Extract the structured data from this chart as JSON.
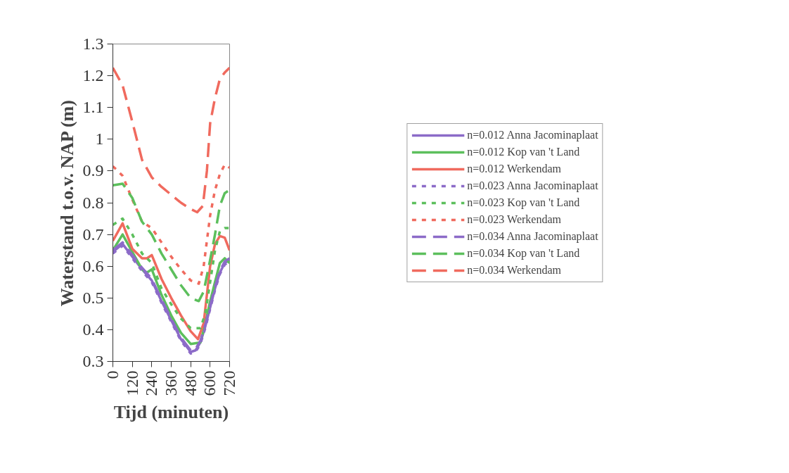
{
  "chart_data": {
    "type": "line",
    "xlabel": "Tijd (minuten)",
    "ylabel": "Waterstand t.o.v. NAP (m)",
    "xlim": [
      0,
      720
    ],
    "xticks": [
      0,
      120,
      240,
      360,
      480,
      600,
      720
    ],
    "ylim": [
      0.3,
      1.3
    ],
    "yticks": [
      0.3,
      0.4,
      0.5,
      0.6,
      0.7,
      0.8,
      0.9,
      1,
      1.1,
      1.2,
      1.3
    ],
    "grid": false,
    "legend": "right",
    "marker": "none",
    "series": [
      {
        "name": "n=0.012 Anna Jacominaplaat",
        "color": "#8c6bc8",
        "line_style": "solid",
        "x": [
          0,
          60,
          120,
          180,
          240,
          300,
          360,
          420,
          480,
          510,
          540,
          570,
          600,
          630,
          660,
          690,
          720
        ],
        "values": [
          0.645,
          0.67,
          0.63,
          0.59,
          0.555,
          0.49,
          0.43,
          0.37,
          0.33,
          0.335,
          0.36,
          0.41,
          0.47,
          0.53,
          0.58,
          0.61,
          0.62
        ]
      },
      {
        "name": "n=0.012 Kop van 't Land",
        "color": "#5cbf5c",
        "line_style": "solid",
        "x": [
          0,
          60,
          120,
          180,
          210,
          240,
          300,
          360,
          420,
          480,
          540,
          570,
          600,
          630,
          660,
          690,
          720
        ],
        "values": [
          0.65,
          0.7,
          0.645,
          0.59,
          0.58,
          0.59,
          0.51,
          0.445,
          0.39,
          0.355,
          0.36,
          0.42,
          0.49,
          0.55,
          0.61,
          0.625,
          0.61
        ]
      },
      {
        "name": "n=0.012 Werkendam",
        "color": "#f06a5e",
        "line_style": "solid",
        "x": [
          0,
          60,
          120,
          180,
          210,
          240,
          300,
          360,
          420,
          480,
          525,
          560,
          600,
          630,
          660,
          690,
          720
        ],
        "values": [
          0.68,
          0.735,
          0.655,
          0.625,
          0.625,
          0.635,
          0.56,
          0.5,
          0.445,
          0.395,
          0.37,
          0.42,
          0.6,
          0.67,
          0.695,
          0.69,
          0.65
        ]
      },
      {
        "name": "n=0.023 Anna Jacominaplaat",
        "color": "#8c6bc8",
        "line_style": "dotted",
        "x": [
          0,
          60,
          120,
          180,
          240,
          300,
          360,
          420,
          480,
          510,
          540,
          570,
          600,
          630,
          660,
          690,
          720
        ],
        "values": [
          0.64,
          0.665,
          0.625,
          0.585,
          0.55,
          0.485,
          0.425,
          0.365,
          0.325,
          0.33,
          0.355,
          0.405,
          0.465,
          0.525,
          0.575,
          0.605,
          0.615
        ]
      },
      {
        "name": "n=0.023 Kop van 't Land",
        "color": "#5cbf5c",
        "line_style": "dotted",
        "x": [
          0,
          60,
          120,
          180,
          240,
          300,
          360,
          420,
          480,
          540,
          570,
          600,
          630,
          660,
          690,
          720
        ],
        "values": [
          0.73,
          0.75,
          0.7,
          0.64,
          0.61,
          0.53,
          0.48,
          0.435,
          0.405,
          0.405,
          0.45,
          0.55,
          0.65,
          0.71,
          0.72,
          0.72
        ]
      },
      {
        "name": "n=0.023 Werkendam",
        "color": "#f06a5e",
        "line_style": "dotted",
        "x": [
          0,
          60,
          120,
          180,
          240,
          300,
          360,
          420,
          480,
          530,
          560,
          600,
          630,
          660,
          690,
          720
        ],
        "values": [
          0.915,
          0.885,
          0.81,
          0.74,
          0.72,
          0.675,
          0.63,
          0.59,
          0.555,
          0.545,
          0.6,
          0.76,
          0.84,
          0.89,
          0.92,
          0.91
        ]
      },
      {
        "name": "n=0.034 Anna Jacominaplaat",
        "color": "#8c6bc8",
        "line_style": "dashed",
        "x": [
          0,
          60,
          120,
          180,
          240,
          300,
          360,
          420,
          480,
          510,
          540,
          570,
          600,
          630,
          660,
          690,
          720
        ],
        "values": [
          0.65,
          0.675,
          0.635,
          0.595,
          0.56,
          0.495,
          0.435,
          0.375,
          0.335,
          0.34,
          0.365,
          0.415,
          0.475,
          0.535,
          0.585,
          0.615,
          0.625
        ]
      },
      {
        "name": "n=0.034 Kop van 't Land",
        "color": "#5cbf5c",
        "line_style": "dashed",
        "x": [
          0,
          60,
          120,
          180,
          240,
          300,
          360,
          420,
          480,
          530,
          560,
          600,
          630,
          660,
          690,
          720
        ],
        "values": [
          0.855,
          0.86,
          0.815,
          0.74,
          0.7,
          0.64,
          0.59,
          0.54,
          0.5,
          0.49,
          0.52,
          0.62,
          0.7,
          0.79,
          0.83,
          0.84
        ]
      },
      {
        "name": "n=0.034 Werkendam",
        "color": "#f06a5e",
        "line_style": "dashed",
        "x": [
          0,
          60,
          120,
          180,
          240,
          300,
          360,
          420,
          480,
          520,
          555,
          580,
          600,
          630,
          660,
          690,
          720
        ],
        "values": [
          1.225,
          1.17,
          1.055,
          0.935,
          0.88,
          0.85,
          0.825,
          0.8,
          0.78,
          0.77,
          0.79,
          0.9,
          1.05,
          1.13,
          1.19,
          1.21,
          1.225
        ]
      }
    ]
  }
}
